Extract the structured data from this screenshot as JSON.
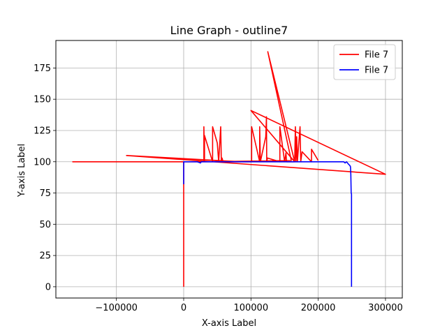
{
  "chart_data": {
    "type": "line",
    "title": "Line Graph - outline7",
    "xlabel": "X-axis Label",
    "ylabel": "Y-axis Label",
    "xlim": [
      -190000,
      325000
    ],
    "ylim": [
      -9,
      197
    ],
    "grid": true,
    "legend_position": "top-right",
    "x_ticks": [
      -100000,
      0,
      100000,
      200000,
      300000
    ],
    "x_tick_labels": [
      "−100000",
      "0",
      "100000",
      "200000",
      "300000"
    ],
    "y_ticks": [
      0,
      25,
      50,
      75,
      100,
      125,
      150,
      175
    ],
    "y_tick_labels": [
      "0",
      "25",
      "50",
      "75",
      "100",
      "125",
      "150",
      "175"
    ],
    "series": [
      {
        "name": "File 7",
        "color": "#ff0000",
        "x": [
          0,
          0,
          0,
          -165000,
          85000,
          -85000,
          300000,
          100000,
          165000,
          125000,
          160000,
          30000,
          30000,
          31000,
          31000,
          43000,
          43000,
          50000,
          52000,
          55000,
          56000,
          57000,
          58000,
          60000,
          101000,
          101000,
          113000,
          113000,
          114000,
          122000,
          123000,
          123500,
          124500,
          143000,
          143000,
          150000,
          152000,
          153000,
          165000,
          166000,
          167000,
          168000,
          169000,
          173000,
          174000,
          176000,
          190000,
          190000,
          200000
        ],
        "y": [
          0,
          100,
          100,
          100,
          100,
          105,
          90,
          141,
          100,
          188,
          101,
          100,
          128,
          100,
          121,
          100,
          128,
          115,
          100,
          128,
          100,
          103,
          101,
          100,
          100,
          128,
          100,
          128,
          100,
          120,
          136,
          100,
          103,
          100,
          128,
          100,
          107,
          100,
          100,
          128,
          100,
          120,
          100,
          128,
          100,
          108,
          100,
          110,
          101
        ]
      },
      {
        "name": "File 7",
        "color": "#0000ff",
        "x": [
          0,
          0,
          20000,
          25000,
          26000,
          60000,
          120000,
          180000,
          238000,
          240000,
          242000,
          245000,
          247000,
          248000,
          248500,
          249000,
          249500,
          249500
        ],
        "y": [
          82,
          100,
          100,
          99,
          100,
          100,
          100,
          100,
          100,
          99,
          100,
          98,
          97,
          96,
          90,
          75,
          74,
          0
        ]
      }
    ]
  }
}
